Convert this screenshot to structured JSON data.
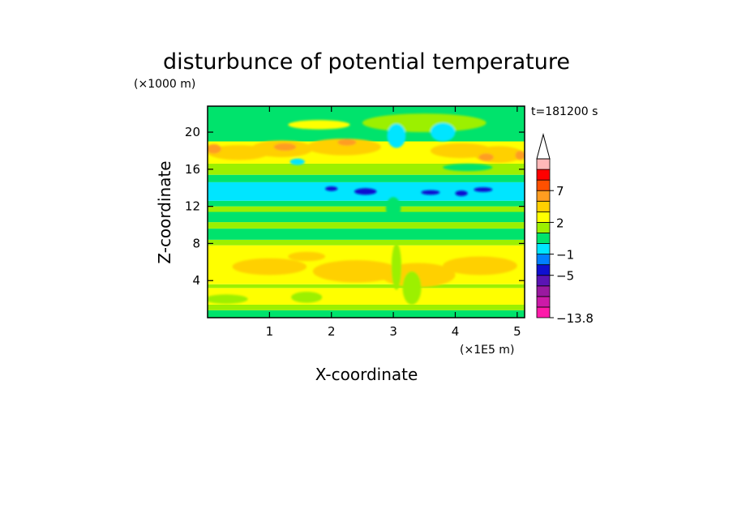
{
  "chart_data": {
    "type": "heatmap",
    "title": "disturbunce of potential temperature",
    "xlabel": "X-coordinate",
    "ylabel": "Z-coordinate",
    "x_scale_label": "(×1E5 m)",
    "y_scale_label": "(×1000 m)",
    "time_label": "t=181200 s",
    "xlim": [
      0,
      5.12
    ],
    "ylim": [
      0,
      22.8
    ],
    "xticks": [
      1,
      2,
      3,
      4,
      5
    ],
    "yticks": [
      4,
      8,
      12,
      16,
      20
    ],
    "colorbar": {
      "levels_bottom_to_top": [
        -13.8,
        -11,
        -9,
        -7,
        -5,
        -3,
        -1,
        0,
        1,
        2,
        3,
        5,
        7,
        9,
        11
      ],
      "colors_bottom_to_top": [
        "#ff1aaa",
        "#cc1aa8",
        "#9a19a0",
        "#5a14b4",
        "#1010d0",
        "#0080ff",
        "#00e5ff",
        "#00e36c",
        "#9cf000",
        "#ffff00",
        "#ffd000",
        "#ff9d20",
        "#ff5000",
        "#ff0000",
        "#ffb8b8"
      ],
      "labels": [
        "7",
        "2",
        "−1",
        "−5",
        "−13.8"
      ],
      "extend": "top"
    },
    "bands": [
      {
        "z": [
          0.0,
          0.8
        ],
        "value": 0.5,
        "color": "#00e36c"
      },
      {
        "z": [
          0.8,
          1.4
        ],
        "value": 1.5,
        "color": "#9cf000"
      },
      {
        "z": [
          1.4,
          3.2
        ],
        "value": 1.8,
        "color": "#ffff00"
      },
      {
        "z": [
          3.2,
          3.6
        ],
        "value": 1.5,
        "color": "#9cf000"
      },
      {
        "z": [
          3.6,
          7.8
        ],
        "value": 2.0,
        "color": "#ffff00"
      },
      {
        "z": [
          7.8,
          8.4
        ],
        "value": 0.5,
        "color": "#9cf000"
      },
      {
        "z": [
          8.4,
          9.6
        ],
        "value": 0.3,
        "color": "#00e36c"
      },
      {
        "z": [
          9.6,
          10.3
        ],
        "value": 1.0,
        "color": "#9cf000"
      },
      {
        "z": [
          10.3,
          11.4
        ],
        "value": 0.2,
        "color": "#00e36c"
      },
      {
        "z": [
          11.4,
          12.0
        ],
        "value": 0.8,
        "color": "#9cf000"
      },
      {
        "z": [
          12.0,
          12.6
        ],
        "value": 0.0,
        "color": "#00e36c"
      },
      {
        "z": [
          12.6,
          14.6
        ],
        "value": -1.5,
        "color": "#00e5ff"
      },
      {
        "z": [
          14.6,
          15.4
        ],
        "value": -0.5,
        "color": "#00e36c"
      },
      {
        "z": [
          15.4,
          16.6
        ],
        "value": 1.5,
        "color": "#9cf000"
      },
      {
        "z": [
          16.6,
          19.0
        ],
        "value": 2.0,
        "color": "#ffff00"
      },
      {
        "z": [
          19.0,
          22.8
        ],
        "value": 0.5,
        "color": "#00e36c"
      }
    ],
    "blobs": [
      {
        "x": 1.0,
        "z": 5.5,
        "rx": 0.6,
        "rz": 0.9,
        "color": "#ffd000"
      },
      {
        "x": 2.4,
        "z": 5.0,
        "rx": 0.7,
        "rz": 1.2,
        "color": "#ffd000"
      },
      {
        "x": 3.4,
        "z": 4.6,
        "rx": 0.6,
        "rz": 1.3,
        "color": "#ffd000"
      },
      {
        "x": 4.4,
        "z": 5.6,
        "rx": 0.6,
        "rz": 1.0,
        "color": "#ffd000"
      },
      {
        "x": 1.6,
        "z": 6.6,
        "rx": 0.3,
        "rz": 0.5,
        "color": "#ffd000"
      },
      {
        "x": 0.3,
        "z": 2.0,
        "rx": 0.35,
        "rz": 0.5,
        "color": "#9cf000"
      },
      {
        "x": 1.6,
        "z": 2.2,
        "rx": 0.25,
        "rz": 0.6,
        "color": "#9cf000"
      },
      {
        "x": 3.3,
        "z": 3.2,
        "rx": 0.15,
        "rz": 1.8,
        "color": "#9cf000"
      },
      {
        "x": 3.05,
        "z": 5.5,
        "rx": 0.08,
        "rz": 2.5,
        "color": "#9cf000"
      },
      {
        "x": 3.0,
        "z": 11.8,
        "rx": 0.12,
        "rz": 1.2,
        "color": "#00e36c"
      },
      {
        "x": 0.5,
        "z": 17.8,
        "rx": 0.5,
        "rz": 0.8,
        "color": "#ffd000"
      },
      {
        "x": 1.2,
        "z": 18.2,
        "rx": 0.5,
        "rz": 0.9,
        "color": "#ffd000"
      },
      {
        "x": 2.2,
        "z": 18.4,
        "rx": 0.6,
        "rz": 0.9,
        "color": "#ffd000"
      },
      {
        "x": 4.1,
        "z": 18.0,
        "rx": 0.5,
        "rz": 0.8,
        "color": "#ffd000"
      },
      {
        "x": 4.7,
        "z": 17.6,
        "rx": 0.4,
        "rz": 0.9,
        "color": "#ffd000"
      },
      {
        "x": 0.1,
        "z": 18.2,
        "rx": 0.12,
        "rz": 0.5,
        "color": "#ff9d20"
      },
      {
        "x": 1.25,
        "z": 18.4,
        "rx": 0.18,
        "rz": 0.4,
        "color": "#ff9d20"
      },
      {
        "x": 2.25,
        "z": 18.9,
        "rx": 0.15,
        "rz": 0.35,
        "color": "#ff9d20"
      },
      {
        "x": 4.5,
        "z": 17.3,
        "rx": 0.12,
        "rz": 0.4,
        "color": "#ff9d20"
      },
      {
        "x": 5.05,
        "z": 17.5,
        "rx": 0.08,
        "rz": 0.5,
        "color": "#ff9d20"
      },
      {
        "x": 3.5,
        "z": 21.0,
        "rx": 1.0,
        "rz": 1.0,
        "color": "#9cf000"
      },
      {
        "x": 1.8,
        "z": 20.8,
        "rx": 0.5,
        "rz": 0.5,
        "color": "#ffff00"
      },
      {
        "x": 3.05,
        "z": 19.6,
        "rx": 0.15,
        "rz": 1.3,
        "color": "#00e5ff"
      },
      {
        "x": 3.8,
        "z": 20.0,
        "rx": 0.2,
        "rz": 1.0,
        "color": "#00e5ff"
      },
      {
        "x": 1.45,
        "z": 16.8,
        "rx": 0.12,
        "rz": 0.35,
        "color": "#00e5ff"
      },
      {
        "x": 4.2,
        "z": 16.2,
        "rx": 0.4,
        "rz": 0.4,
        "color": "#00e36c"
      },
      {
        "x": 2.55,
        "z": 13.6,
        "rx": 0.18,
        "rz": 0.35,
        "color": "#1010d0"
      },
      {
        "x": 2.0,
        "z": 13.9,
        "rx": 0.1,
        "rz": 0.25,
        "color": "#1010d0"
      },
      {
        "x": 3.6,
        "z": 13.5,
        "rx": 0.15,
        "rz": 0.25,
        "color": "#1010d0"
      },
      {
        "x": 4.1,
        "z": 13.4,
        "rx": 0.1,
        "rz": 0.3,
        "color": "#1010d0"
      },
      {
        "x": 4.45,
        "z": 13.8,
        "rx": 0.15,
        "rz": 0.25,
        "color": "#1010d0"
      }
    ]
  }
}
